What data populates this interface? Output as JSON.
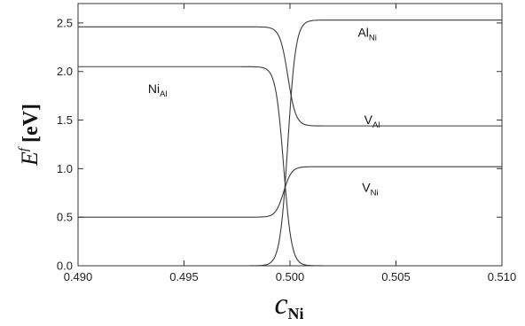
{
  "chart_data": {
    "type": "line",
    "title": "",
    "xlabel": {
      "main": "c",
      "sub": "Ni"
    },
    "ylabel": {
      "main": "E",
      "sup": "f",
      "unit": "[eV]"
    },
    "xlim": [
      0.49,
      0.51
    ],
    "ylim": [
      0.0,
      2.7
    ],
    "x_ticks": [
      "0.490",
      "0.495",
      "0.500",
      "0.505",
      "0.510"
    ],
    "y_ticks": [
      "0.0",
      "0.5",
      "1.0",
      "1.5",
      "2.0",
      "2.5"
    ],
    "grid": false,
    "legend": "none",
    "series": [
      {
        "name": "Al_Ni",
        "y_left": 0.0,
        "y_right": 2.53,
        "x_center": 0.4999,
        "width": 0.00075
      },
      {
        "name": "Ni_Al",
        "y_left": 2.05,
        "y_right": 0.0,
        "x_center": 0.4997,
        "width": 0.00075
      },
      {
        "name": "V_Al",
        "y_left": 2.46,
        "y_right": 1.44,
        "x_center": 0.4999,
        "width": 0.00075
      },
      {
        "name": "V_Ni",
        "y_left": 0.5,
        "y_right": 1.02,
        "x_center": 0.4997,
        "width": 0.00075
      }
    ],
    "annotations": [
      {
        "main": "Al",
        "sub": "Ni",
        "x": 0.5032,
        "y": 2.36
      },
      {
        "main": "Ni",
        "sub": "Al",
        "x": 0.4933,
        "y": 1.78
      },
      {
        "main": "V",
        "sub": "Al",
        "x": 0.5035,
        "y": 1.46
      },
      {
        "main": "V",
        "sub": "Ni",
        "x": 0.5034,
        "y": 0.76
      }
    ]
  }
}
